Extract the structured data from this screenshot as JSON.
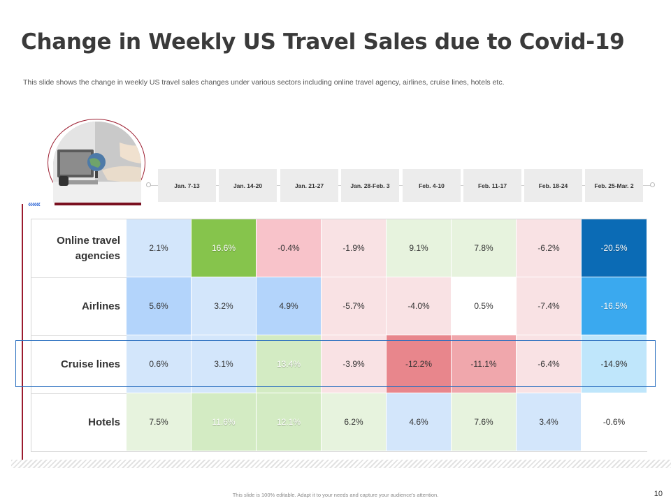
{
  "slide": {
    "title": "Change in Weekly US Travel Sales due to Covid-19",
    "subtitle": "This slide shows the change in weekly US travel sales changes under various sectors including online travel agency, airlines, cruise lines, hotels etc.",
    "footer": "This slide is 100% editable. Adapt it to your needs and capture your audience's attention.",
    "page_number": "10",
    "chevron": "«««"
  },
  "weeks": [
    "Jan. 7-13",
    "Jan. 14-20",
    "Jan. 21-27",
    "Jan. 28-Feb. 3",
    "Feb. 4-10",
    "Feb. 11-17",
    "Feb. 18-24",
    "Feb. 25-Mar. 2"
  ],
  "rows": [
    {
      "label": "Online travel agencies",
      "values": [
        "2.1%",
        "16.6%",
        "-0.4%",
        "-1.9%",
        "9.1%",
        "7.8%",
        "-6.2%",
        "-20.5%"
      ],
      "colors": [
        "#d3e6fb",
        "#86c44c",
        "#f8c3ca",
        "#f9e2e4",
        "#e7f3de",
        "#e7f3de",
        "#f9e2e4",
        "#0b6bb5"
      ],
      "light": [
        false,
        true,
        false,
        false,
        false,
        false,
        false,
        true
      ]
    },
    {
      "label": "Airlines",
      "values": [
        "5.6%",
        "3.2%",
        "4.9%",
        "-5.7%",
        "-4.0%",
        "0.5%",
        "-7.4%",
        "-16.5%"
      ],
      "colors": [
        "#b3d4fb",
        "#d3e6fb",
        "#b3d4fb",
        "#f9e2e4",
        "#f9e2e4",
        "#ffffff",
        "#f9e2e4",
        "#3aa9ef"
      ],
      "light": [
        false,
        false,
        false,
        false,
        false,
        false,
        false,
        true
      ]
    },
    {
      "label": "Cruise lines",
      "values": [
        "0.6%",
        "3.1%",
        "13.4%",
        "-3.9%",
        "-12.2%",
        "-11.1%",
        "-6.4%",
        "-14.9%"
      ],
      "colors": [
        "#d3e6fb",
        "#d3e6fb",
        "#d3ebc3",
        "#f9e2e4",
        "#e8868c",
        "#f0a7ac",
        "#f9e2e4",
        "#bfe6fb"
      ],
      "light": [
        false,
        false,
        true,
        false,
        false,
        false,
        false,
        false
      ]
    },
    {
      "label": "Hotels",
      "values": [
        "7.5%",
        "11.6%",
        "12.1%",
        "6.2%",
        "4.6%",
        "7.6%",
        "3.4%",
        "-0.6%"
      ],
      "colors": [
        "#e7f3de",
        "#d3ebc3",
        "#d3ebc3",
        "#e7f3de",
        "#d3e6fb",
        "#e7f3de",
        "#d3e6fb",
        "#ffffff"
      ],
      "light": [
        false,
        true,
        true,
        false,
        false,
        false,
        false,
        false
      ]
    }
  ]
}
